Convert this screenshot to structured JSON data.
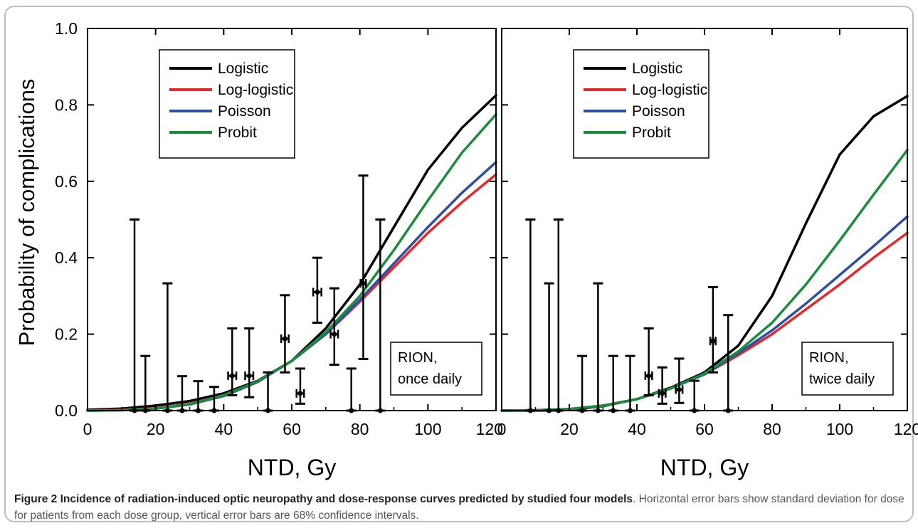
{
  "caption": {
    "title": "Figure 2 Incidence of radiation-induced optic neuropathy and dose-response curves predicted by studied four models",
    "text": ". Horizontal error bars show standard deviation for dose for patients from each dose group, vertical error bars are 68% confidence intervals."
  },
  "colors": {
    "Logistic": "#000000",
    "Log-logistic": "#e8262b",
    "Poisson": "#2e4ea3",
    "Probit": "#1a8c3c"
  },
  "chart_data": [
    {
      "type": "line",
      "title": "",
      "xlabel": "NTD, Gy",
      "ylabel": "Probability of complications",
      "xlim": [
        0,
        120
      ],
      "ylim": [
        0,
        1.0
      ],
      "x_ticks": [
        0,
        20,
        40,
        60,
        80,
        100,
        120
      ],
      "y_ticks": [
        0.0,
        0.2,
        0.4,
        0.6,
        0.8,
        1.0
      ],
      "legend_position": "top-left",
      "annotation": [
        "RION,",
        "once daily"
      ],
      "annotation_position": "bottom-right",
      "series": [
        {
          "name": "Logistic",
          "x": [
            0,
            10,
            20,
            30,
            40,
            50,
            60,
            70,
            80,
            90,
            100,
            110,
            120
          ],
          "y": [
            0.002,
            0.005,
            0.013,
            0.025,
            0.045,
            0.078,
            0.13,
            0.215,
            0.33,
            0.48,
            0.63,
            0.74,
            0.825
          ]
        },
        {
          "name": "Log-logistic",
          "x": [
            0,
            10,
            20,
            30,
            40,
            50,
            60,
            70,
            80,
            90,
            100,
            110,
            120
          ],
          "y": [
            0.0,
            0.002,
            0.006,
            0.018,
            0.04,
            0.076,
            0.13,
            0.2,
            0.285,
            0.375,
            0.465,
            0.545,
            0.618
          ]
        },
        {
          "name": "Poisson",
          "x": [
            0,
            10,
            20,
            30,
            40,
            50,
            60,
            70,
            80,
            90,
            100,
            110,
            120
          ],
          "y": [
            0.0,
            0.001,
            0.005,
            0.016,
            0.038,
            0.075,
            0.13,
            0.2,
            0.29,
            0.385,
            0.48,
            0.57,
            0.65
          ]
        },
        {
          "name": "Probit",
          "x": [
            0,
            10,
            20,
            30,
            40,
            50,
            60,
            70,
            80,
            90,
            100,
            110,
            120
          ],
          "y": [
            0.0,
            0.001,
            0.005,
            0.017,
            0.04,
            0.077,
            0.13,
            0.205,
            0.3,
            0.42,
            0.55,
            0.675,
            0.775
          ]
        }
      ],
      "points": [
        {
          "x": 13.8,
          "y": 0.0,
          "lo": 0.0,
          "hi": 0.5,
          "xerr": 0
        },
        {
          "x": 17.0,
          "y": 0.0,
          "lo": 0.0,
          "hi": 0.143,
          "xerr": 0
        },
        {
          "x": 23.5,
          "y": 0.0,
          "lo": 0.0,
          "hi": 0.333,
          "xerr": 0
        },
        {
          "x": 27.8,
          "y": 0.0,
          "lo": 0.0,
          "hi": 0.09,
          "xerr": 0
        },
        {
          "x": 32.5,
          "y": 0.0,
          "lo": 0.0,
          "hi": 0.077,
          "xerr": 0
        },
        {
          "x": 37.2,
          "y": 0.0,
          "lo": 0.0,
          "hi": 0.062,
          "xerr": 0
        },
        {
          "x": 42.5,
          "y": 0.091,
          "lo": 0.04,
          "hi": 0.215,
          "xerr": 1.2
        },
        {
          "x": 47.5,
          "y": 0.091,
          "lo": 0.035,
          "hi": 0.215,
          "xerr": 1.2
        },
        {
          "x": 53.0,
          "y": 0.0,
          "lo": 0.0,
          "hi": 0.1,
          "xerr": 0
        },
        {
          "x": 58.0,
          "y": 0.188,
          "lo": 0.1,
          "hi": 0.302,
          "xerr": 1.1
        },
        {
          "x": 62.5,
          "y": 0.045,
          "lo": 0.018,
          "hi": 0.11,
          "xerr": 1.1
        },
        {
          "x": 67.5,
          "y": 0.31,
          "lo": 0.23,
          "hi": 0.4,
          "xerr": 1.2
        },
        {
          "x": 72.5,
          "y": 0.2,
          "lo": 0.12,
          "hi": 0.32,
          "xerr": 1.1
        },
        {
          "x": 77.5,
          "y": 0.0,
          "lo": 0.0,
          "hi": 0.11,
          "xerr": 0
        },
        {
          "x": 81.0,
          "y": 0.333,
          "lo": 0.135,
          "hi": 0.615,
          "xerr": 0.8
        },
        {
          "x": 86.0,
          "y": 0.0,
          "lo": 0.0,
          "hi": 0.5,
          "xerr": 0
        }
      ]
    },
    {
      "type": "line",
      "title": "",
      "xlabel": "NTD, Gy",
      "ylabel": "",
      "xlim": [
        0,
        120
      ],
      "ylim": [
        0,
        1.0
      ],
      "x_ticks": [
        0,
        20,
        40,
        60,
        80,
        100,
        120
      ],
      "legend_position": "top-left",
      "annotation": [
        "RION,",
        "twice daily"
      ],
      "annotation_position": "bottom-right",
      "series": [
        {
          "name": "Logistic",
          "x": [
            0,
            10,
            20,
            30,
            40,
            50,
            60,
            70,
            80,
            90,
            100,
            110,
            120
          ],
          "y": [
            0.0,
            0.0,
            0.002,
            0.012,
            0.03,
            0.06,
            0.1,
            0.17,
            0.3,
            0.49,
            0.67,
            0.77,
            0.823
          ]
        },
        {
          "name": "Log-logistic",
          "x": [
            0,
            10,
            20,
            30,
            40,
            50,
            60,
            70,
            80,
            90,
            100,
            110,
            120
          ],
          "y": [
            0.0,
            0.001,
            0.004,
            0.013,
            0.03,
            0.058,
            0.095,
            0.145,
            0.2,
            0.265,
            0.33,
            0.4,
            0.465
          ]
        },
        {
          "name": "Poisson",
          "x": [
            0,
            10,
            20,
            30,
            40,
            50,
            60,
            70,
            80,
            90,
            100,
            110,
            120
          ],
          "y": [
            0.0,
            0.001,
            0.004,
            0.013,
            0.03,
            0.058,
            0.095,
            0.15,
            0.21,
            0.28,
            0.355,
            0.43,
            0.508
          ]
        },
        {
          "name": "Probit",
          "x": [
            0,
            10,
            20,
            30,
            40,
            50,
            60,
            70,
            80,
            90,
            100,
            110,
            120
          ],
          "y": [
            0.0,
            0.001,
            0.004,
            0.013,
            0.03,
            0.058,
            0.097,
            0.155,
            0.23,
            0.33,
            0.445,
            0.565,
            0.682
          ]
        }
      ],
      "points": [
        {
          "x": 8.5,
          "y": 0.0,
          "lo": 0.0,
          "hi": 0.5,
          "xerr": 0
        },
        {
          "x": 14.0,
          "y": 0.0,
          "lo": 0.0,
          "hi": 0.333,
          "xerr": 0
        },
        {
          "x": 16.8,
          "y": 0.0,
          "lo": 0.0,
          "hi": 0.5,
          "xerr": 0
        },
        {
          "x": 23.8,
          "y": 0.0,
          "lo": 0.0,
          "hi": 0.143,
          "xerr": 0
        },
        {
          "x": 28.5,
          "y": 0.0,
          "lo": 0.0,
          "hi": 0.333,
          "xerr": 0
        },
        {
          "x": 33.0,
          "y": 0.0,
          "lo": 0.0,
          "hi": 0.143,
          "xerr": 0
        },
        {
          "x": 38.0,
          "y": 0.0,
          "lo": 0.0,
          "hi": 0.143,
          "xerr": 0
        },
        {
          "x": 43.5,
          "y": 0.091,
          "lo": 0.04,
          "hi": 0.215,
          "xerr": 1.0
        },
        {
          "x": 47.5,
          "y": 0.045,
          "lo": 0.018,
          "hi": 0.113,
          "xerr": 1.0
        },
        {
          "x": 52.5,
          "y": 0.055,
          "lo": 0.02,
          "hi": 0.136,
          "xerr": 1.0
        },
        {
          "x": 57.0,
          "y": 0.0,
          "lo": 0.0,
          "hi": 0.078,
          "xerr": 0
        },
        {
          "x": 62.5,
          "y": 0.182,
          "lo": 0.1,
          "hi": 0.323,
          "xerr": 0.8
        },
        {
          "x": 67.0,
          "y": 0.0,
          "lo": 0.0,
          "hi": 0.25,
          "xerr": 0
        }
      ]
    }
  ]
}
